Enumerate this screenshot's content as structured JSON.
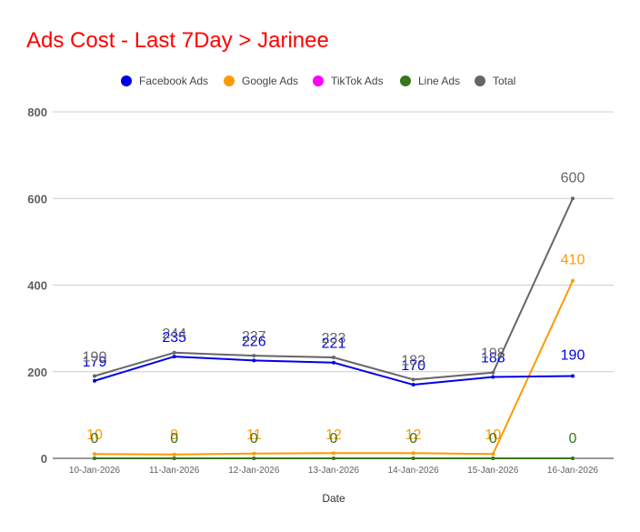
{
  "chart_data": {
    "type": "line",
    "title": "Ads Cost - Last 7Day > Jarinee",
    "xlabel": "Date",
    "ylabel": "",
    "ylim": [
      0,
      800
    ],
    "yticks": [
      0,
      200,
      400,
      600,
      800
    ],
    "grid": true,
    "legend_position": "top",
    "categories": [
      "10-Jan-2026",
      "11-Jan-2026",
      "12-Jan-2026",
      "13-Jan-2026",
      "14-Jan-2026",
      "15-Jan-2026",
      "16-Jan-2026"
    ],
    "series": [
      {
        "name": "Facebook Ads",
        "color": "#0000e6",
        "values": [
          179,
          235,
          226,
          221,
          170,
          188,
          190
        ]
      },
      {
        "name": "Google Ads",
        "color": "#ff9900",
        "values": [
          10,
          9,
          11,
          12,
          12,
          10,
          410
        ]
      },
      {
        "name": "TikTok Ads",
        "color": "#ff00ff",
        "values": [
          0,
          0,
          0,
          0,
          0,
          0,
          0
        ]
      },
      {
        "name": "Line Ads",
        "color": "#38761d",
        "values": [
          0,
          0,
          0,
          0,
          0,
          0,
          0
        ]
      },
      {
        "name": "Total",
        "color": "#666666",
        "values": [
          190,
          244,
          237,
          233,
          182,
          198,
          600
        ]
      }
    ],
    "data_labels": {
      "Facebook Ads": [
        "179",
        "235",
        "226",
        "221",
        "170",
        "188",
        "190"
      ],
      "Google Ads": [
        "10",
        "9",
        "11",
        "12",
        "12",
        "10",
        "410"
      ],
      "Line Ads": [
        "0",
        "0",
        "0",
        "0",
        "0",
        "0",
        "0"
      ],
      "Total": [
        "190",
        "244",
        "237",
        "233",
        "182",
        "198",
        "600"
      ]
    }
  }
}
